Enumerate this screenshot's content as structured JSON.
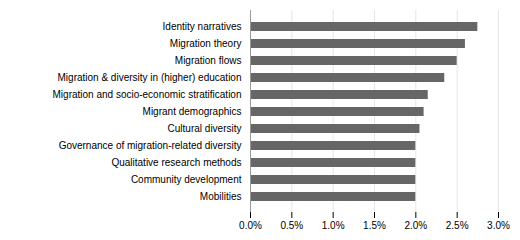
{
  "chart_data": {
    "type": "bar",
    "orientation": "horizontal",
    "categories": [
      "Mobilities",
      "Community development",
      "Qualitative research methods",
      "Governance of migration-related diversity",
      "Cultural diversity",
      "Migrant demographics",
      "Migration and socio-economic stratification",
      "Migration & diversity in (higher) education",
      "Migration flows",
      "Migration theory",
      "Identity narratives"
    ],
    "values": [
      0.02,
      0.02,
      0.02,
      0.02,
      0.0205,
      0.021,
      0.0215,
      0.0235,
      0.025,
      0.026,
      0.0275
    ],
    "color": "#666666",
    "xlim": [
      0,
      0.03
    ],
    "xticks": [
      {
        "value": 0.0,
        "label": "0.0%"
      },
      {
        "value": 0.005,
        "label": "0.5%"
      },
      {
        "value": 0.01,
        "label": "1.0%"
      },
      {
        "value": 0.015,
        "label": "1.5%"
      },
      {
        "value": 0.02,
        "label": "2.0%"
      },
      {
        "value": 0.025,
        "label": "2.5%"
      },
      {
        "value": 0.03,
        "label": "3.0%"
      }
    ],
    "grid": true
  }
}
